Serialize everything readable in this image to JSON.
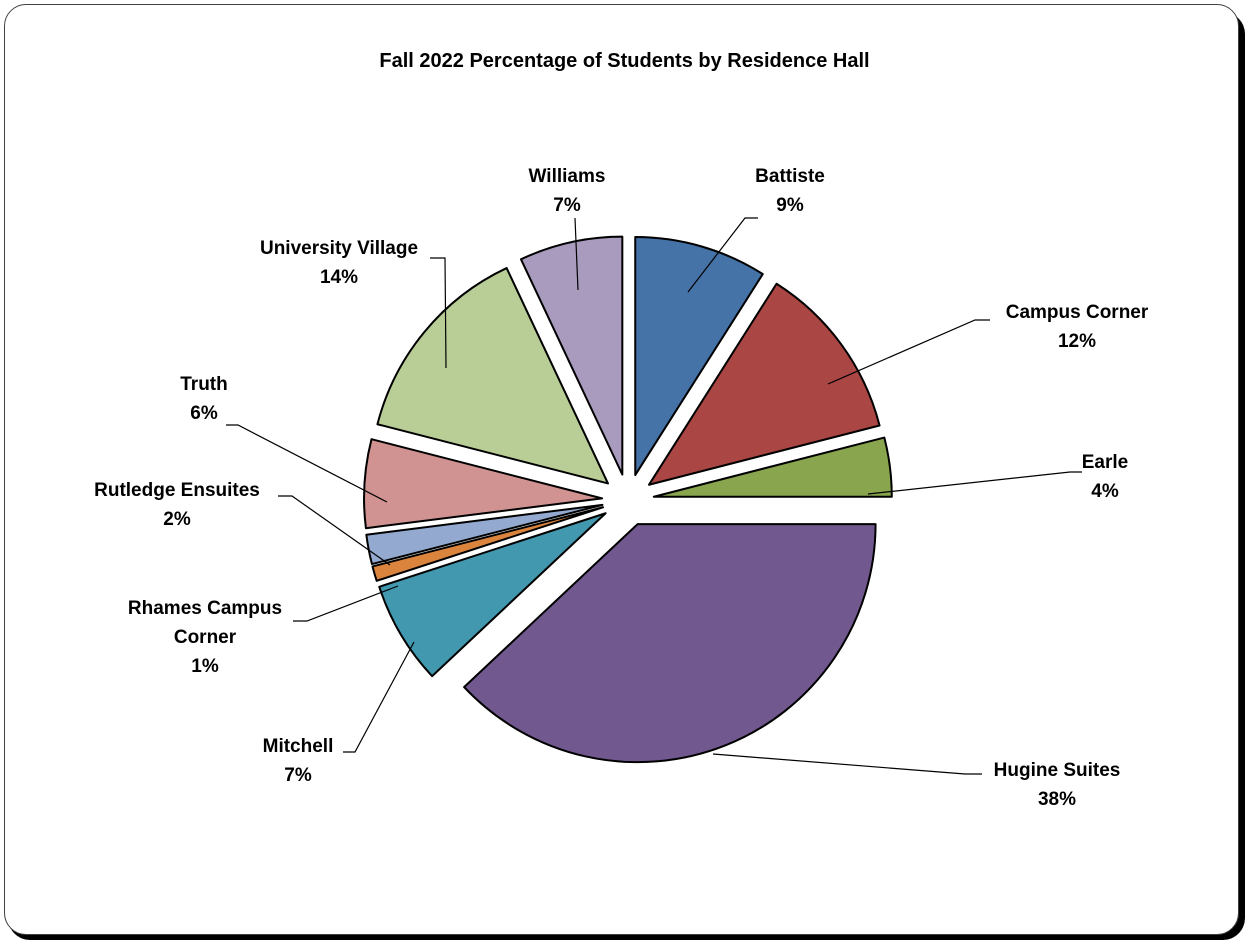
{
  "chart_data": {
    "type": "pie",
    "title": "Fall 2022 Percentage of Students by Residence Hall",
    "exploded": true,
    "slices": [
      {
        "label": "Battiste",
        "value": 9,
        "value_label": "9%",
        "color": "#4572A7"
      },
      {
        "label": "Campus Corner",
        "value": 12,
        "value_label": "12%",
        "color": "#AA4643"
      },
      {
        "label": "Earle",
        "value": 4,
        "value_label": "4%",
        "color": "#89A54E"
      },
      {
        "label": "Hugine Suites",
        "value": 38,
        "value_label": "38%",
        "color": "#71588F"
      },
      {
        "label": "Mitchell",
        "value": 7,
        "value_label": "7%",
        "color": "#4198AF"
      },
      {
        "label": "Rhames Campus Corner",
        "value": 1,
        "value_label": "1%",
        "color": "#DB843D"
      },
      {
        "label": "Rutledge Ensuites",
        "value": 2,
        "value_label": "2%",
        "color": "#93A9CF"
      },
      {
        "label": "Truth",
        "value": 6,
        "value_label": "6%",
        "color": "#D19392"
      },
      {
        "label": "University Village",
        "value": 14,
        "value_label": "14%",
        "color": "#B9CD96"
      },
      {
        "label": "Williams",
        "value": 7,
        "value_label": "7%",
        "color": "#A99BBD"
      }
    ]
  }
}
